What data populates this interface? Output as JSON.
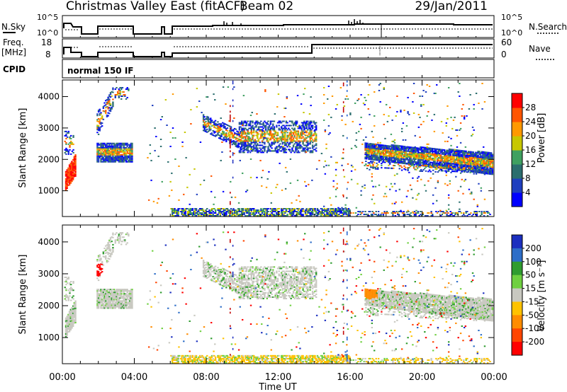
{
  "header": {
    "title": "Christmas Valley East (fitACF)",
    "beam": "Beam 02",
    "date": "29/Jan/2011"
  },
  "panels": {
    "nsky": {
      "label": "N.Sky",
      "right_label": "N.Search",
      "left_ticks": [
        "10^5",
        "10^0"
      ],
      "right_ticks": [
        "10^5",
        "10^0"
      ]
    },
    "freq": {
      "label_line1": "Freq.",
      "label_line2": "[MHz]",
      "right_label": "Nave",
      "left_ticks": [
        "18",
        "8"
      ],
      "right_ticks": [
        "60",
        "0"
      ]
    },
    "cpid": {
      "label": "CPID",
      "mode_text": "normal 150 IF"
    }
  },
  "colors": {
    "power": [
      "#0000ff",
      "#1f3fbf",
      "#2b6e6e",
      "#3fa060",
      "#c7c700",
      "#ff9900",
      "#ff5500",
      "#ff0000"
    ],
    "velocity": [
      "#1b2fbf",
      "#2e6ec8",
      "#2f9c2f",
      "#6fd040",
      "#c8c8c0",
      "#ffc200",
      "#ff8c00",
      "#ff4500",
      "#ff0000"
    ]
  },
  "chart_data": [
    {
      "type": "heatmap",
      "name": "power",
      "ylabel": "Slant Range [km]",
      "ylim": [
        180,
        4530
      ],
      "yticks": [
        1000,
        2000,
        3000,
        4000
      ],
      "xlim": [
        0,
        24
      ],
      "colorbar": {
        "label": "Power [dB]",
        "ticks": [
          "4",
          "8",
          "12",
          "16",
          "20",
          "24",
          "28"
        ]
      }
    },
    {
      "type": "heatmap",
      "name": "velocity",
      "ylabel": "Slant Range [km]",
      "ylim": [
        180,
        4530
      ],
      "yticks": [
        1000,
        2000,
        3000,
        4000
      ],
      "xlim": [
        0,
        24
      ],
      "colorbar": {
        "label": "Velocity [m s⁻¹]",
        "ticks": [
          "200",
          "100",
          "50",
          "15",
          "-15",
          "-50",
          "-100",
          "-200"
        ]
      }
    }
  ],
  "xaxis": {
    "label": "Time UT",
    "ticks": [
      "00:00",
      "04:00",
      "08:00",
      "12:00",
      "16:00",
      "20:00",
      "00:00"
    ]
  }
}
